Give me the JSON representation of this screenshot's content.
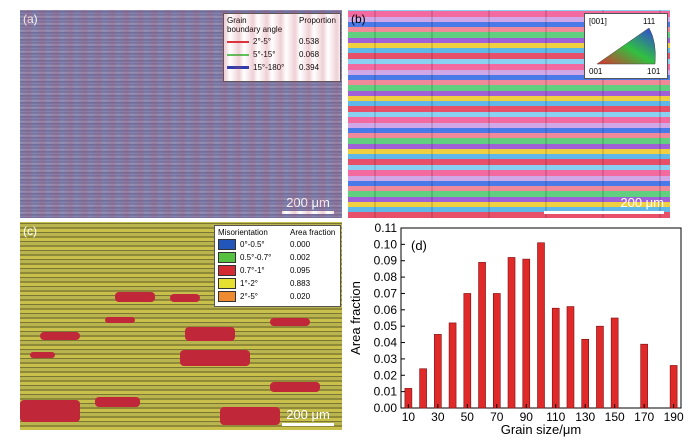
{
  "panel_a": {
    "label": "(a)",
    "legend_header_1": "Grain",
    "legend_header_2": "boundary angle",
    "legend_header_3": "Proportion",
    "rows": [
      {
        "range": "2°-5°",
        "value": "0.538",
        "color": "#e0303a"
      },
      {
        "range": "5°-15°",
        "value": "0.068",
        "color": "#5ac85a"
      },
      {
        "range": "15°-180°",
        "value": "0.394",
        "color": "#2a3cb0"
      }
    ],
    "scale": "200 μm"
  },
  "panel_b": {
    "label": "(b)",
    "legend_title": "[001]",
    "corner_111": "111",
    "corner_001": "001",
    "corner_101": "101",
    "scale": "200 μm"
  },
  "panel_c": {
    "label": "(c)",
    "legend_header_1": "Misorientation",
    "legend_header_2": "Area fraction",
    "rows": [
      {
        "range": "0°-0.5°",
        "value": "0.000",
        "color": "#2356b8"
      },
      {
        "range": "0.5°-0.7°",
        "value": "0.002",
        "color": "#56c040"
      },
      {
        "range": "0.7°-1°",
        "value": "0.095",
        "color": "#d42a34"
      },
      {
        "range": "1°-2°",
        "value": "0.883",
        "color": "#e6e030"
      },
      {
        "range": "2°-5°",
        "value": "0.020",
        "color": "#ee8a30"
      }
    ],
    "scale": "200 μm"
  },
  "chart_data": {
    "type": "bar",
    "label": "(d)",
    "xlabel": "Grain size/μm",
    "ylabel": "Area fraction",
    "xlim": [
      5,
      195
    ],
    "ylim": [
      0,
      0.11
    ],
    "xticks": [
      10,
      30,
      50,
      70,
      90,
      110,
      130,
      150,
      170,
      190
    ],
    "yticks": [
      "0.00",
      "0.01",
      "0.02",
      "0.03",
      "0.04",
      "0.05",
      "0.06",
      "0.07",
      "0.08",
      "0.09",
      "0.10",
      "0.11"
    ],
    "bar_color": "#e02a2a",
    "x": [
      10,
      20,
      30,
      40,
      50,
      60,
      70,
      80,
      90,
      100,
      110,
      120,
      130,
      140,
      150,
      170,
      190
    ],
    "values": [
      0.012,
      0.024,
      0.045,
      0.052,
      0.07,
      0.089,
      0.07,
      0.092,
      0.091,
      0.101,
      0.061,
      0.062,
      0.042,
      0.05,
      0.055,
      0.039,
      0.026
    ],
    "bars_x_order_note": ""
  }
}
